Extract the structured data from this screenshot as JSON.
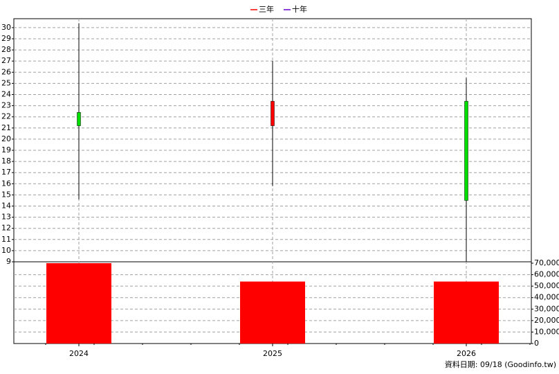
{
  "chart_data": {
    "type": "candlestick",
    "legend": [
      {
        "name": "三年",
        "color": "#ff0000"
      },
      {
        "name": "十年",
        "color": "#6600cc"
      }
    ],
    "categories": [
      "2024",
      "2025",
      "2026"
    ],
    "open": [
      22.4,
      21.2,
      23.4
    ],
    "high": [
      30.4,
      27.0,
      25.5
    ],
    "low": [
      14.6,
      15.8,
      9.0
    ],
    "close": [
      21.2,
      23.4,
      14.5
    ],
    "up_color": "#ff0000",
    "down_color": "#00dd00",
    "ylim": [
      9,
      30.8
    ],
    "yticks": [
      9,
      10,
      11,
      12,
      13,
      14,
      15,
      16,
      17,
      18,
      19,
      20,
      21,
      22,
      23,
      24,
      25,
      26,
      27,
      28,
      29,
      30
    ],
    "volume": [
      70000,
      54000,
      54000
    ],
    "volume_color": "#ff0000",
    "y2lim": [
      0,
      70000
    ],
    "y2ticks": [
      {
        "value": 0,
        "label": "0"
      },
      {
        "value": 10000,
        "label": "10,000"
      },
      {
        "value": 20000,
        "label": "20,000"
      },
      {
        "value": 30000,
        "label": "30,000"
      },
      {
        "value": 40000,
        "label": "40,000"
      },
      {
        "value": 50000,
        "label": "50,000"
      },
      {
        "value": 60000,
        "label": "60,000"
      },
      {
        "value": 70000,
        "label": "70,000"
      }
    ],
    "grid": true,
    "footer": "資料日期: 09/18  (Goodinfo.tw)"
  }
}
